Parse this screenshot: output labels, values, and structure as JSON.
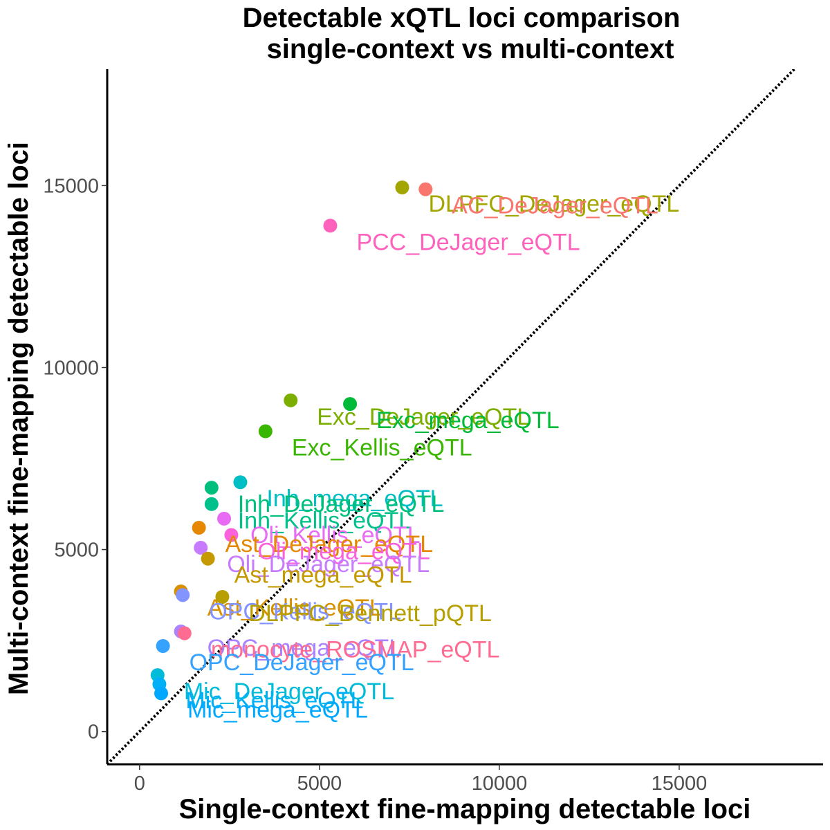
{
  "chart_data": {
    "type": "scatter",
    "title": "Detectable xQTL loci comparison",
    "subtitle": "single-context vs multi-context",
    "xlabel": "Single-context fine-mapping detectable loci",
    "ylabel": "Multi-context fine-mapping detectable loci",
    "xlim": [
      -900,
      19000
    ],
    "ylim": [
      -900,
      18200
    ],
    "x_ticks": [
      0,
      5000,
      10000,
      15000
    ],
    "y_ticks": [
      0,
      5000,
      10000,
      15000
    ],
    "x_tick_labels": [
      "0",
      "5000",
      "10000",
      "15000"
    ],
    "y_tick_labels": [
      "0",
      "5000",
      "10000",
      "15000"
    ],
    "reference_line": "y = x (dotted)",
    "legend": "none",
    "grid": false,
    "points": [
      {
        "label": "DLPFC_DeJager_eQTL",
        "x": 7300,
        "y": 14950,
        "color": "#A3A500"
      },
      {
        "label": "AC_DeJager_eQTL",
        "x": 7950,
        "y": 14900,
        "color": "#F8766D"
      },
      {
        "label": "PCC_DeJager_eQTL",
        "x": 5300,
        "y": 13900,
        "color": "#FF62BC"
      },
      {
        "label": "Exc_DeJager_eQTL",
        "x": 4200,
        "y": 9100,
        "color": "#7CAE00"
      },
      {
        "label": "Exc_mega_eQTL",
        "x": 5850,
        "y": 9000,
        "color": "#00BA38"
      },
      {
        "label": "Exc_Kellis_eQTL",
        "x": 3500,
        "y": 8250,
        "color": "#39B600"
      },
      {
        "label": "Inh_mega_eQTL",
        "x": 2800,
        "y": 6850,
        "color": "#00BFC4"
      },
      {
        "label": "Inh_DeJager_eQTL",
        "x": 2000,
        "y": 6700,
        "color": "#00BF7D"
      },
      {
        "label": "Inh_Kellis_eQTL",
        "x": 2000,
        "y": 6250,
        "color": "#00C08B"
      },
      {
        "label": "Oli_Kellis_eQTL",
        "x": 2350,
        "y": 5850,
        "color": "#E76BF3"
      },
      {
        "label": "Ast_DeJager_eQTL",
        "x": 1650,
        "y": 5600,
        "color": "#E58700"
      },
      {
        "label": "Oli_mega_eQTL",
        "x": 2550,
        "y": 5400,
        "color": "#FA62DB"
      },
      {
        "label": "Oli_DeJager_eQTL",
        "x": 1700,
        "y": 5050,
        "color": "#C77CFF"
      },
      {
        "label": "Ast_mega_eQTL",
        "x": 1900,
        "y": 4750,
        "color": "#C49A00"
      },
      {
        "label": "Ast_Kellis_eQTL",
        "x": 1150,
        "y": 3850,
        "color": "#D89000"
      },
      {
        "label": "OPC_Kellis_eQTL",
        "x": 1200,
        "y": 3750,
        "color": "#8494FF"
      },
      {
        "label": "DLPFC_Bennett_pQTL",
        "x": 2300,
        "y": 3700,
        "color": "#B79F00"
      },
      {
        "label": "OPC_mega_eQTL",
        "x": 1150,
        "y": 2750,
        "color": "#AB82FF"
      },
      {
        "label": "monocyte_ROSMAP_eQTL",
        "x": 1250,
        "y": 2700,
        "color": "#FF6C91"
      },
      {
        "label": "OPC_DeJager_eQTL",
        "x": 650,
        "y": 2350,
        "color": "#35A2FF"
      },
      {
        "label": "Mic_DeJager_eQTL",
        "x": 500,
        "y": 1550,
        "color": "#00BCD8"
      },
      {
        "label": "Mic_Kellis_eQTL",
        "x": 550,
        "y": 1300,
        "color": "#00B0F6"
      },
      {
        "label": "Mic_mega_eQTL",
        "x": 600,
        "y": 1050,
        "color": "#00A9FF"
      }
    ]
  }
}
